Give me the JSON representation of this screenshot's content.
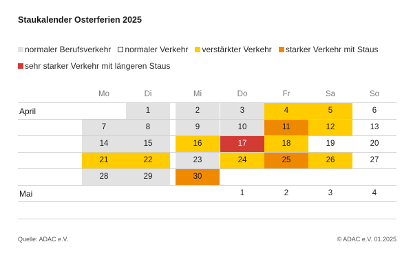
{
  "title": "Staukalender Osterferien 2025",
  "legend": [
    {
      "key": "beruf",
      "label": "normaler Berufsverkehr",
      "color": "#e2e2e2",
      "border": ""
    },
    {
      "key": "normal",
      "label": "normaler Verkehr",
      "color": "#ffffff",
      "border": "#333333"
    },
    {
      "key": "verstaerkt",
      "label": "verstärkter Verkehr",
      "color": "#ffcc00",
      "border": ""
    },
    {
      "key": "stark",
      "label": "starker Verkehr mit Staus",
      "color": "#ef8a00",
      "border": ""
    },
    {
      "key": "sehr_stark",
      "label": "sehr starker Verkehr mit längeren Staus",
      "color": "#d23a34",
      "border": ""
    }
  ],
  "weekdays": [
    "Mo",
    "Di",
    "Mi",
    "Do",
    "Fr",
    "Sa",
    "So"
  ],
  "chart_data": {
    "type": "table",
    "months": [
      {
        "name": "April",
        "weeks": [
          [
            null,
            {
              "day": "1",
              "level": "beruf"
            },
            {
              "day": "2",
              "level": "beruf"
            },
            {
              "day": "3",
              "level": "beruf"
            },
            {
              "day": "4",
              "level": "verstaerkt"
            },
            {
              "day": "5",
              "level": "verstaerkt"
            },
            {
              "day": "6",
              "level": "normal"
            }
          ],
          [
            {
              "day": "7",
              "level": "beruf"
            },
            {
              "day": "8",
              "level": "beruf"
            },
            {
              "day": "9",
              "level": "beruf"
            },
            {
              "day": "10",
              "level": "beruf"
            },
            {
              "day": "11",
              "level": "stark"
            },
            {
              "day": "12",
              "level": "verstaerkt"
            },
            {
              "day": "13",
              "level": "normal"
            }
          ],
          [
            {
              "day": "14",
              "level": "beruf"
            },
            {
              "day": "15",
              "level": "beruf"
            },
            {
              "day": "16",
              "level": "verstaerkt"
            },
            {
              "day": "17",
              "level": "sehr_stark"
            },
            {
              "day": "18",
              "level": "verstaerkt"
            },
            {
              "day": "19",
              "level": "normal"
            },
            {
              "day": "20",
              "level": "normal"
            }
          ],
          [
            {
              "day": "21",
              "level": "verstaerkt"
            },
            {
              "day": "22",
              "level": "verstaerkt"
            },
            {
              "day": "23",
              "level": "beruf"
            },
            {
              "day": "24",
              "level": "verstaerkt"
            },
            {
              "day": "25",
              "level": "stark"
            },
            {
              "day": "26",
              "level": "verstaerkt"
            },
            {
              "day": "27",
              "level": "normal"
            }
          ],
          [
            {
              "day": "28",
              "level": "beruf"
            },
            {
              "day": "29",
              "level": "beruf"
            },
            {
              "day": "30",
              "level": "stark"
            },
            null,
            null,
            null,
            null
          ]
        ]
      },
      {
        "name": "Mai",
        "weeks": [
          [
            null,
            null,
            null,
            {
              "day": "1",
              "level": "normal"
            },
            {
              "day": "2",
              "level": "normal"
            },
            {
              "day": "3",
              "level": "normal"
            },
            {
              "day": "4",
              "level": "normal"
            }
          ]
        ]
      }
    ]
  },
  "footer": {
    "source": "Quelle: ADAC e.V.",
    "copyright": "© ADAC e.V. 01.2025"
  }
}
